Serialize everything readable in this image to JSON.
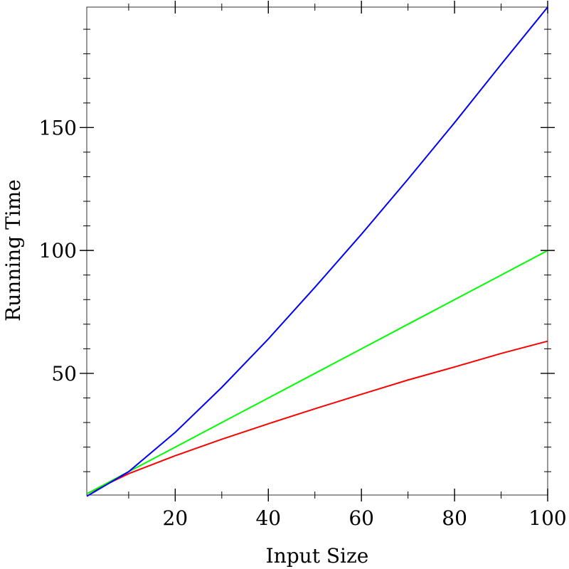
{
  "chart_data": {
    "type": "line",
    "title": "",
    "xlabel": "Input Size",
    "ylabel": "Running Time",
    "xlim": [
      1,
      100
    ],
    "ylim": [
      0.5,
      199
    ],
    "x_ticks": [
      20,
      40,
      60,
      80,
      100
    ],
    "y_ticks": [
      50,
      100,
      150
    ],
    "grid": false,
    "series": [
      {
        "color": "#ff0000",
        "x": [
          1,
          10,
          20,
          30,
          40,
          50,
          60,
          70,
          80,
          90,
          100
        ],
        "y": [
          1,
          9.2,
          16.5,
          23.2,
          29.5,
          35.6,
          41.5,
          47.3,
          52.6,
          58.1,
          63.1
        ]
      },
      {
        "color": "#00ff00",
        "x": [
          1,
          10,
          20,
          30,
          40,
          50,
          60,
          70,
          80,
          90,
          100
        ],
        "y": [
          1,
          10,
          20,
          30,
          40,
          50,
          60,
          70,
          80,
          90,
          100
        ]
      },
      {
        "color": "#0000ff",
        "x": [
          1,
          10,
          20,
          30,
          40,
          50,
          60,
          70,
          80,
          90,
          100
        ],
        "y": [
          0,
          10,
          26,
          44.3,
          64,
          85,
          106.6,
          129,
          152,
          175.7,
          199
        ]
      }
    ]
  }
}
